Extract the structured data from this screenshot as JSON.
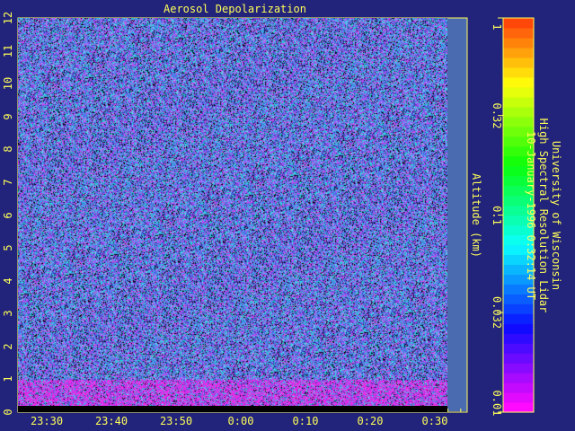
{
  "chart_data": {
    "type": "heatmap",
    "title": "Aerosol Depolarization",
    "ylabel": "Altitude (km)",
    "xlabel": "",
    "x_ticks": [
      "23:30",
      "23:40",
      "23:50",
      "0:00",
      "0:10",
      "0:20",
      "0:30"
    ],
    "y_ticks": [
      "0",
      "1",
      "2",
      "3",
      "4",
      "5",
      "6",
      "7",
      "8",
      "9",
      "10",
      "11",
      "12"
    ],
    "ylim": [
      0,
      12
    ],
    "colorbar": {
      "scale": "log",
      "range": [
        0.01,
        1
      ],
      "tick_labels": [
        "1",
        "0.32",
        "0.1",
        "0.032",
        "0.01"
      ],
      "tick_values": [
        1,
        0.32,
        0.1,
        0.032,
        0.01
      ]
    },
    "grid": true,
    "annotation_lines": [
      "University of Wisconsin",
      "High Spectral Resolution Lidar",
      "10-January-1996  0:32:14 UT"
    ]
  },
  "colors": {
    "background": "#22237a",
    "grid": "#ffff5a",
    "text": "#ffff5a",
    "no_data": "#4a6bb0"
  }
}
